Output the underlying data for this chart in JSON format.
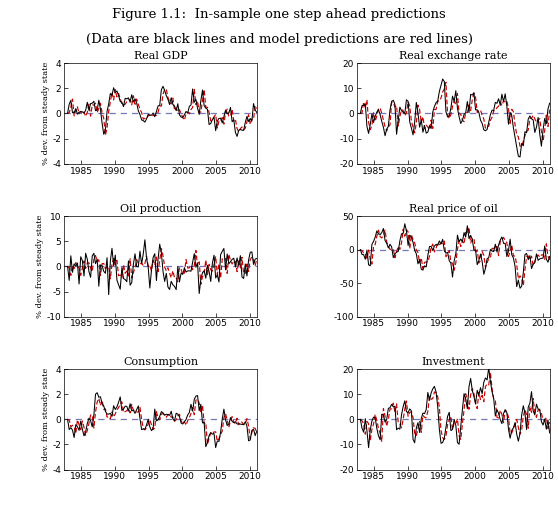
{
  "title_line1": "Figure 1.1:  In-sample one step ahead predictions",
  "title_line2": "(Data are black lines and model predictions are red lines)",
  "subplots": [
    {
      "title": "Real GDP",
      "ylim": [
        -4,
        4
      ],
      "yticks": [
        -4,
        -2,
        0,
        2,
        4
      ]
    },
    {
      "title": "Real exchange rate",
      "ylim": [
        -20,
        20
      ],
      "yticks": [
        -20,
        -10,
        0,
        10,
        20
      ]
    },
    {
      "title": "Oil production",
      "ylim": [
        -10,
        10
      ],
      "yticks": [
        -10,
        -5,
        0,
        5,
        10
      ]
    },
    {
      "title": "Real price of oil",
      "ylim": [
        -100,
        50
      ],
      "yticks": [
        -100,
        -50,
        0,
        50
      ]
    },
    {
      "title": "Consumption",
      "ylim": [
        -4,
        4
      ],
      "yticks": [
        -4,
        -2,
        0,
        2,
        4
      ]
    },
    {
      "title": "Investment",
      "ylim": [
        -20,
        20
      ],
      "yticks": [
        -20,
        -10,
        0,
        10,
        20
      ]
    }
  ],
  "xlim": [
    1982.5,
    2011.0
  ],
  "xticks": [
    1985,
    1990,
    1995,
    2000,
    2005,
    2010
  ],
  "ylabel": "% dev. from steady state",
  "data_color": "#000000",
  "pred_color": "#cc0000",
  "hline_color": "#7777bb",
  "background": "#ffffff"
}
